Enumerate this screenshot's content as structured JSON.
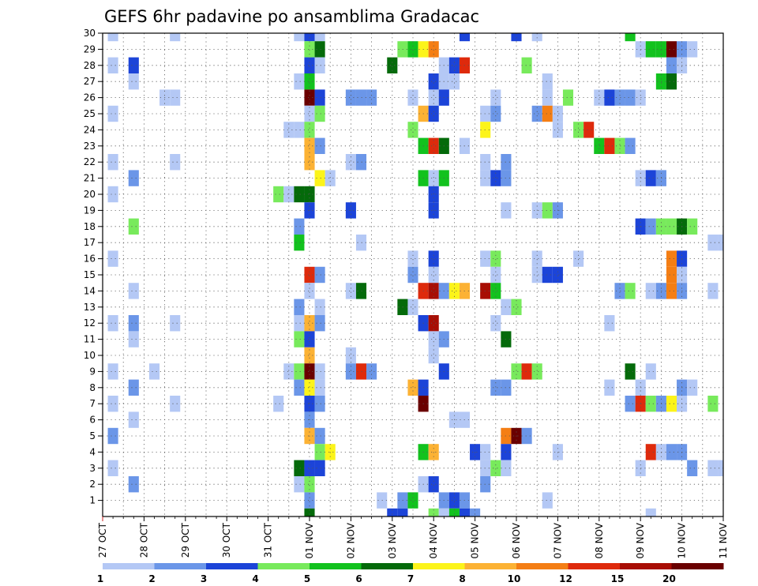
{
  "chart_data": {
    "type": "heatmap",
    "title": "GEFS 6hr padavine po ansamblima Gradacac",
    "xlabel": "",
    "ylabel": "",
    "x_tick_labels": [
      "27 OCT",
      "28 OCT",
      "29 OCT",
      "30 OCT",
      "31 OCT",
      "01 NOV",
      "02 NOV",
      "03 NOV",
      "04 NOV",
      "05 NOV",
      "06 NOV",
      "07 NOV",
      "08 NOV",
      "09 NOV",
      "10 NOV",
      "11 NOV"
    ],
    "y_tick_labels": [
      "1",
      "2",
      "3",
      "4",
      "5",
      "6",
      "7",
      "8",
      "9",
      "10",
      "11",
      "12",
      "13",
      "14",
      "15",
      "16",
      "17",
      "18",
      "19",
      "20",
      "21",
      "22",
      "23",
      "24",
      "25",
      "26",
      "27",
      "28",
      "29",
      "30"
    ],
    "x_range_days": [
      0,
      15
    ],
    "y_range": [
      0,
      30
    ],
    "grid": "dotted",
    "levels": [
      "1",
      "2",
      "3",
      "4",
      "5",
      "6",
      "7",
      "8",
      "10",
      "12",
      "15",
      "20"
    ],
    "colors": [
      "#b4c8f5",
      "#6b96e8",
      "#1c44d8",
      "#78ea5c",
      "#12c21e",
      "#046a0a",
      "#fcf41a",
      "#fcb234",
      "#f47e14",
      "#de2a0c",
      "#a80e04",
      "#6a0000"
    ],
    "colorbar_placement": "bottom",
    "cells_note": "each cell: [day (0 = 27 OCT), ensemble member, color level index]",
    "cells": [
      [
        0.25,
        30,
        0
      ],
      [
        1.75,
        30,
        0
      ],
      [
        4.75,
        30,
        0
      ],
      [
        5.0,
        30,
        2
      ],
      [
        5.25,
        30,
        0
      ],
      [
        8.75,
        30,
        2
      ],
      [
        10.0,
        30,
        2
      ],
      [
        10.5,
        30,
        0
      ],
      [
        12.75,
        30,
        4
      ],
      [
        5.0,
        29,
        3
      ],
      [
        5.25,
        29,
        5
      ],
      [
        7.25,
        29,
        3
      ],
      [
        7.5,
        29,
        4
      ],
      [
        7.75,
        29,
        6
      ],
      [
        8.0,
        29,
        8
      ],
      [
        13.0,
        29,
        0
      ],
      [
        13.25,
        29,
        4
      ],
      [
        13.5,
        29,
        4
      ],
      [
        13.75,
        29,
        11
      ],
      [
        14.0,
        29,
        1
      ],
      [
        14.25,
        29,
        0
      ],
      [
        0.25,
        28,
        0
      ],
      [
        0.75,
        28,
        2
      ],
      [
        5.0,
        28,
        2
      ],
      [
        5.25,
        28,
        0
      ],
      [
        7.0,
        28,
        5
      ],
      [
        8.25,
        28,
        0
      ],
      [
        8.5,
        28,
        2
      ],
      [
        8.75,
        28,
        9
      ],
      [
        10.25,
        28,
        3
      ],
      [
        13.75,
        28,
        1
      ],
      [
        14.0,
        28,
        0
      ],
      [
        0.75,
        27,
        0
      ],
      [
        4.75,
        27,
        0
      ],
      [
        5.0,
        27,
        4
      ],
      [
        8.0,
        27,
        2
      ],
      [
        8.25,
        27,
        0
      ],
      [
        8.5,
        27,
        0
      ],
      [
        10.75,
        27,
        0
      ],
      [
        13.5,
        27,
        4
      ],
      [
        13.75,
        27,
        5
      ],
      [
        1.5,
        26,
        0
      ],
      [
        1.75,
        26,
        0
      ],
      [
        5.0,
        26,
        11
      ],
      [
        5.25,
        26,
        2
      ],
      [
        6.0,
        26,
        1
      ],
      [
        6.25,
        26,
        1
      ],
      [
        6.5,
        26,
        1
      ],
      [
        7.5,
        26,
        0
      ],
      [
        8.0,
        26,
        0
      ],
      [
        8.25,
        26,
        2
      ],
      [
        9.5,
        26,
        0
      ],
      [
        10.75,
        26,
        0
      ],
      [
        11.25,
        26,
        3
      ],
      [
        12.0,
        26,
        0
      ],
      [
        12.25,
        26,
        2
      ],
      [
        12.5,
        26,
        1
      ],
      [
        12.75,
        26,
        1
      ],
      [
        13.0,
        26,
        0
      ],
      [
        0.25,
        25,
        0
      ],
      [
        5.0,
        25,
        0
      ],
      [
        5.25,
        25,
        3
      ],
      [
        7.75,
        25,
        7
      ],
      [
        8.0,
        25,
        2
      ],
      [
        9.25,
        25,
        0
      ],
      [
        9.5,
        25,
        1
      ],
      [
        10.5,
        25,
        1
      ],
      [
        10.75,
        25,
        8
      ],
      [
        11.0,
        25,
        0
      ],
      [
        4.5,
        24,
        0
      ],
      [
        4.75,
        24,
        0
      ],
      [
        5.0,
        24,
        3
      ],
      [
        7.5,
        24,
        3
      ],
      [
        9.25,
        24,
        6
      ],
      [
        11.0,
        24,
        0
      ],
      [
        11.5,
        24,
        3
      ],
      [
        11.75,
        24,
        9
      ],
      [
        5.0,
        23,
        7
      ],
      [
        5.25,
        23,
        1
      ],
      [
        7.75,
        23,
        4
      ],
      [
        8.0,
        23,
        9
      ],
      [
        8.25,
        23,
        5
      ],
      [
        8.75,
        23,
        0
      ],
      [
        12.0,
        23,
        4
      ],
      [
        12.25,
        23,
        9
      ],
      [
        12.5,
        23,
        3
      ],
      [
        12.75,
        23,
        1
      ],
      [
        0.25,
        22,
        0
      ],
      [
        1.75,
        22,
        0
      ],
      [
        5.0,
        22,
        7
      ],
      [
        6.0,
        22,
        0
      ],
      [
        6.25,
        22,
        1
      ],
      [
        9.25,
        22,
        0
      ],
      [
        9.75,
        22,
        1
      ],
      [
        0.75,
        21,
        1
      ],
      [
        5.25,
        21,
        6
      ],
      [
        5.5,
        21,
        0
      ],
      [
        7.75,
        21,
        4
      ],
      [
        8.0,
        21,
        0
      ],
      [
        8.25,
        21,
        4
      ],
      [
        9.25,
        21,
        0
      ],
      [
        9.5,
        21,
        2
      ],
      [
        9.75,
        21,
        1
      ],
      [
        13.0,
        21,
        0
      ],
      [
        13.25,
        21,
        2
      ],
      [
        13.5,
        21,
        1
      ],
      [
        0.25,
        20,
        0
      ],
      [
        4.25,
        20,
        3
      ],
      [
        4.5,
        20,
        0
      ],
      [
        4.75,
        20,
        5
      ],
      [
        5.0,
        20,
        5
      ],
      [
        8.0,
        20,
        2
      ],
      [
        5.0,
        19,
        2
      ],
      [
        6.0,
        19,
        2
      ],
      [
        8.0,
        19,
        2
      ],
      [
        9.75,
        19,
        0
      ],
      [
        10.5,
        19,
        0
      ],
      [
        10.75,
        19,
        3
      ],
      [
        11.0,
        19,
        1
      ],
      [
        0.75,
        18,
        3
      ],
      [
        4.75,
        18,
        1
      ],
      [
        13.0,
        18,
        2
      ],
      [
        13.25,
        18,
        1
      ],
      [
        13.5,
        18,
        3
      ],
      [
        13.75,
        18,
        3
      ],
      [
        14.0,
        18,
        5
      ],
      [
        14.25,
        18,
        3
      ],
      [
        4.75,
        17,
        4
      ],
      [
        6.25,
        17,
        0
      ],
      [
        14.75,
        17,
        0
      ],
      [
        15.0,
        17,
        0
      ],
      [
        0.25,
        16,
        0
      ],
      [
        7.5,
        16,
        0
      ],
      [
        8.0,
        16,
        2
      ],
      [
        9.25,
        16,
        0
      ],
      [
        9.5,
        16,
        3
      ],
      [
        10.5,
        16,
        0
      ],
      [
        11.5,
        16,
        0
      ],
      [
        13.75,
        16,
        8
      ],
      [
        14.0,
        16,
        2
      ],
      [
        5.0,
        15,
        9
      ],
      [
        5.25,
        15,
        1
      ],
      [
        7.5,
        15,
        1
      ],
      [
        8.0,
        15,
        0
      ],
      [
        9.5,
        15,
        0
      ],
      [
        10.5,
        15,
        0
      ],
      [
        10.75,
        15,
        2
      ],
      [
        11.0,
        15,
        2
      ],
      [
        13.75,
        15,
        8
      ],
      [
        14.0,
        15,
        0
      ],
      [
        0.75,
        14,
        0
      ],
      [
        5.0,
        14,
        0
      ],
      [
        6.0,
        14,
        0
      ],
      [
        6.25,
        14,
        5
      ],
      [
        7.75,
        14,
        9
      ],
      [
        8.0,
        14,
        10
      ],
      [
        8.25,
        14,
        1
      ],
      [
        8.5,
        14,
        6
      ],
      [
        8.75,
        14,
        7
      ],
      [
        9.25,
        14,
        10
      ],
      [
        9.5,
        14,
        4
      ],
      [
        12.5,
        14,
        1
      ],
      [
        12.75,
        14,
        3
      ],
      [
        13.25,
        14,
        0
      ],
      [
        13.5,
        14,
        1
      ],
      [
        13.75,
        14,
        8
      ],
      [
        14.0,
        14,
        1
      ],
      [
        14.75,
        14,
        0
      ],
      [
        4.75,
        13,
        1
      ],
      [
        5.25,
        13,
        0
      ],
      [
        7.25,
        13,
        5
      ],
      [
        7.5,
        13,
        0
      ],
      [
        9.75,
        13,
        0
      ],
      [
        10.0,
        13,
        3
      ],
      [
        0.25,
        12,
        0
      ],
      [
        0.75,
        12,
        1
      ],
      [
        1.75,
        12,
        0
      ],
      [
        4.75,
        12,
        0
      ],
      [
        5.0,
        12,
        7
      ],
      [
        5.25,
        12,
        1
      ],
      [
        7.75,
        12,
        2
      ],
      [
        8.0,
        12,
        10
      ],
      [
        9.5,
        12,
        0
      ],
      [
        12.25,
        12,
        0
      ],
      [
        0.75,
        11,
        0
      ],
      [
        4.75,
        11,
        3
      ],
      [
        5.0,
        11,
        2
      ],
      [
        8.0,
        11,
        0
      ],
      [
        8.25,
        11,
        1
      ],
      [
        9.75,
        11,
        5
      ],
      [
        5.0,
        10,
        7
      ],
      [
        6.0,
        10,
        0
      ],
      [
        8.0,
        10,
        0
      ],
      [
        0.25,
        9,
        0
      ],
      [
        1.25,
        9,
        0
      ],
      [
        4.5,
        9,
        0
      ],
      [
        4.75,
        9,
        3
      ],
      [
        5.0,
        9,
        11
      ],
      [
        5.25,
        9,
        0
      ],
      [
        6.0,
        9,
        1
      ],
      [
        6.25,
        9,
        9
      ],
      [
        6.5,
        9,
        1
      ],
      [
        8.25,
        9,
        2
      ],
      [
        10.0,
        9,
        3
      ],
      [
        10.25,
        9,
        9
      ],
      [
        10.5,
        9,
        3
      ],
      [
        12.75,
        9,
        5
      ],
      [
        13.25,
        9,
        0
      ],
      [
        0.75,
        8,
        1
      ],
      [
        4.75,
        8,
        1
      ],
      [
        5.0,
        8,
        6
      ],
      [
        5.25,
        8,
        0
      ],
      [
        7.5,
        8,
        7
      ],
      [
        7.75,
        8,
        2
      ],
      [
        9.5,
        8,
        1
      ],
      [
        9.75,
        8,
        1
      ],
      [
        12.25,
        8,
        0
      ],
      [
        13.0,
        8,
        0
      ],
      [
        14.0,
        8,
        1
      ],
      [
        14.25,
        8,
        0
      ],
      [
        0.25,
        7,
        0
      ],
      [
        1.75,
        7,
        0
      ],
      [
        4.25,
        7,
        0
      ],
      [
        5.0,
        7,
        2
      ],
      [
        5.25,
        7,
        1
      ],
      [
        7.75,
        7,
        11
      ],
      [
        12.75,
        7,
        1
      ],
      [
        13.0,
        7,
        9
      ],
      [
        13.25,
        7,
        3
      ],
      [
        13.5,
        7,
        1
      ],
      [
        13.75,
        7,
        6
      ],
      [
        14.0,
        7,
        0
      ],
      [
        14.75,
        7,
        3
      ],
      [
        0.75,
        6,
        0
      ],
      [
        5.0,
        6,
        1
      ],
      [
        8.5,
        6,
        0
      ],
      [
        8.75,
        6,
        0
      ],
      [
        0.25,
        5,
        1
      ],
      [
        5.0,
        5,
        7
      ],
      [
        5.25,
        5,
        1
      ],
      [
        9.75,
        5,
        8
      ],
      [
        10.0,
        5,
        11
      ],
      [
        10.25,
        5,
        1
      ],
      [
        5.25,
        4,
        3
      ],
      [
        5.5,
        4,
        6
      ],
      [
        7.75,
        4,
        4
      ],
      [
        8.0,
        4,
        7
      ],
      [
        9.0,
        4,
        2
      ],
      [
        9.25,
        4,
        0
      ],
      [
        9.75,
        4,
        2
      ],
      [
        11.0,
        4,
        0
      ],
      [
        13.25,
        4,
        9
      ],
      [
        13.5,
        4,
        0
      ],
      [
        13.75,
        4,
        1
      ],
      [
        14.0,
        4,
        1
      ],
      [
        0.25,
        3,
        0
      ],
      [
        4.75,
        3,
        5
      ],
      [
        5.0,
        3,
        2
      ],
      [
        5.25,
        3,
        2
      ],
      [
        9.25,
        3,
        0
      ],
      [
        9.5,
        3,
        3
      ],
      [
        9.75,
        3,
        0
      ],
      [
        13.0,
        3,
        0
      ],
      [
        14.25,
        3,
        1
      ],
      [
        14.75,
        3,
        0
      ],
      [
        15.0,
        3,
        0
      ],
      [
        0.75,
        2,
        1
      ],
      [
        4.75,
        2,
        0
      ],
      [
        5.0,
        2,
        3
      ],
      [
        7.75,
        2,
        0
      ],
      [
        8.0,
        2,
        2
      ],
      [
        9.25,
        2,
        1
      ],
      [
        5.0,
        1,
        1
      ],
      [
        6.75,
        1,
        0
      ],
      [
        7.25,
        1,
        1
      ],
      [
        7.5,
        1,
        4
      ],
      [
        8.25,
        1,
        1
      ],
      [
        8.5,
        1,
        2
      ],
      [
        8.75,
        1,
        1
      ],
      [
        10.75,
        1,
        0
      ],
      [
        5.0,
        0,
        5
      ],
      [
        7.0,
        0,
        2
      ],
      [
        7.25,
        0,
        2
      ],
      [
        8.0,
        0,
        3
      ],
      [
        8.25,
        0,
        0
      ],
      [
        8.5,
        0,
        4
      ],
      [
        8.75,
        0,
        2
      ],
      [
        9.0,
        0,
        1
      ],
      [
        13.25,
        0,
        0
      ]
    ]
  }
}
